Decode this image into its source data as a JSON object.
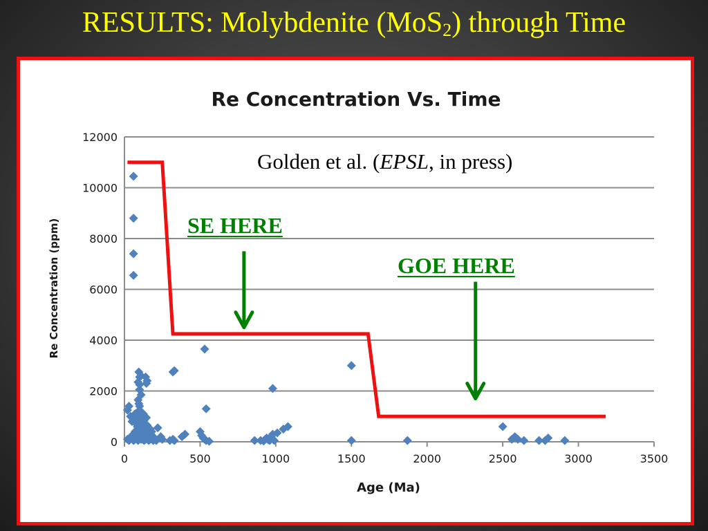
{
  "slide": {
    "title_main": "RESULTS: Molybdenite (MoS",
    "title_sub": "2",
    "title_end": ") through Time"
  },
  "colors": {
    "title": "#ffff00",
    "frame": "#ee1111",
    "marker": "#4f81bd",
    "red_line": "#ee1111",
    "arrow": "#008000",
    "gridline": "#8c8c8c"
  },
  "annotations": {
    "citation_pre": "Golden et al. (",
    "citation_italic": "EPSL",
    "citation_post": ", in press)",
    "se_label": "SE HERE",
    "goe_label": "GOE HERE"
  },
  "chart_data": {
    "type": "scatter",
    "title": "Re Concentration Vs. Time",
    "xlabel": "Age (Ma)",
    "ylabel": "Re Concentration (ppm)",
    "xlim": [
      0,
      3500
    ],
    "ylim": [
      0,
      12000
    ],
    "xticks": [
      0,
      500,
      1000,
      1500,
      2000,
      2500,
      3000,
      3500
    ],
    "yticks": [
      0,
      2000,
      4000,
      6000,
      8000,
      10000,
      12000
    ],
    "xtick_labels": [
      "0",
      "500",
      "1000",
      "1500",
      "2000",
      "2500",
      "3000",
      "3500"
    ],
    "ytick_labels": [
      "0",
      "2000",
      "4000",
      "6000",
      "8000",
      "10000",
      "12000"
    ],
    "grid": "horizontal",
    "legend": "none",
    "series": [
      {
        "marker": "diamond",
        "x": [
          60,
          60,
          60,
          60,
          95,
          100,
          90,
          110,
          100,
          140,
          150,
          145,
          100,
          110,
          90,
          95,
          100,
          100,
          105,
          20,
          30,
          40,
          50,
          60,
          70,
          75,
          80,
          85,
          90,
          95,
          100,
          105,
          110,
          115,
          120,
          125,
          130,
          135,
          140,
          145,
          150,
          155,
          160,
          165,
          170,
          175,
          180,
          190,
          200,
          60,
          70,
          80,
          90,
          100,
          110,
          120,
          130,
          140,
          150,
          160,
          20,
          30,
          40,
          50,
          60,
          70,
          80,
          90,
          100,
          110,
          120,
          130,
          140,
          150,
          160,
          170,
          180,
          190,
          200,
          210,
          220,
          240,
          250,
          300,
          320,
          330,
          380,
          400,
          500,
          510,
          520,
          530,
          540,
          560,
          320,
          330,
          530,
          540,
          860,
          900,
          920,
          930,
          940,
          950,
          960,
          970,
          980,
          990,
          1010,
          1050,
          1080,
          980,
          1500,
          1500,
          1870,
          2500,
          2560,
          2580,
          2600,
          2640,
          2740,
          2780,
          2800,
          2910
        ],
        "y": [
          10450,
          8800,
          7400,
          6550,
          2750,
          2550,
          2350,
          2600,
          2250,
          2550,
          2400,
          2300,
          2050,
          1850,
          1650,
          1500,
          1400,
          1250,
          1100,
          1250,
          1400,
          1000,
          800,
          900,
          1100,
          950,
          700,
          600,
          500,
          800,
          650,
          900,
          550,
          750,
          600,
          1100,
          850,
          700,
          500,
          950,
          650,
          400,
          300,
          200,
          500,
          300,
          400,
          200,
          100,
          300,
          400,
          200,
          350,
          150,
          250,
          100,
          350,
          200,
          150,
          250,
          100,
          50,
          150,
          250,
          50,
          100,
          150,
          50,
          200,
          100,
          150,
          50,
          100,
          200,
          50,
          100,
          150,
          50,
          100,
          50,
          550,
          200,
          100,
          50,
          100,
          50,
          200,
          300,
          400,
          250,
          150,
          100,
          50,
          20,
          2750,
          2800,
          3650,
          1300,
          50,
          50,
          30,
          100,
          150,
          80,
          50,
          200,
          300,
          50,
          350,
          500,
          600,
          2100,
          3000,
          50,
          50,
          600,
          100,
          200,
          100,
          50,
          50,
          50,
          150,
          50
        ]
      }
    ],
    "overlay_step_line": {
      "x": [
        20,
        250,
        320,
        1610,
        1680,
        3180
      ],
      "y": [
        11000,
        11000,
        4250,
        4250,
        1000,
        1000
      ]
    },
    "annotation_arrows": [
      {
        "x": 790,
        "y_top": 7500,
        "y_bottom": 4500
      },
      {
        "x": 2320,
        "y_top": 6300,
        "y_bottom": 1700
      }
    ]
  }
}
